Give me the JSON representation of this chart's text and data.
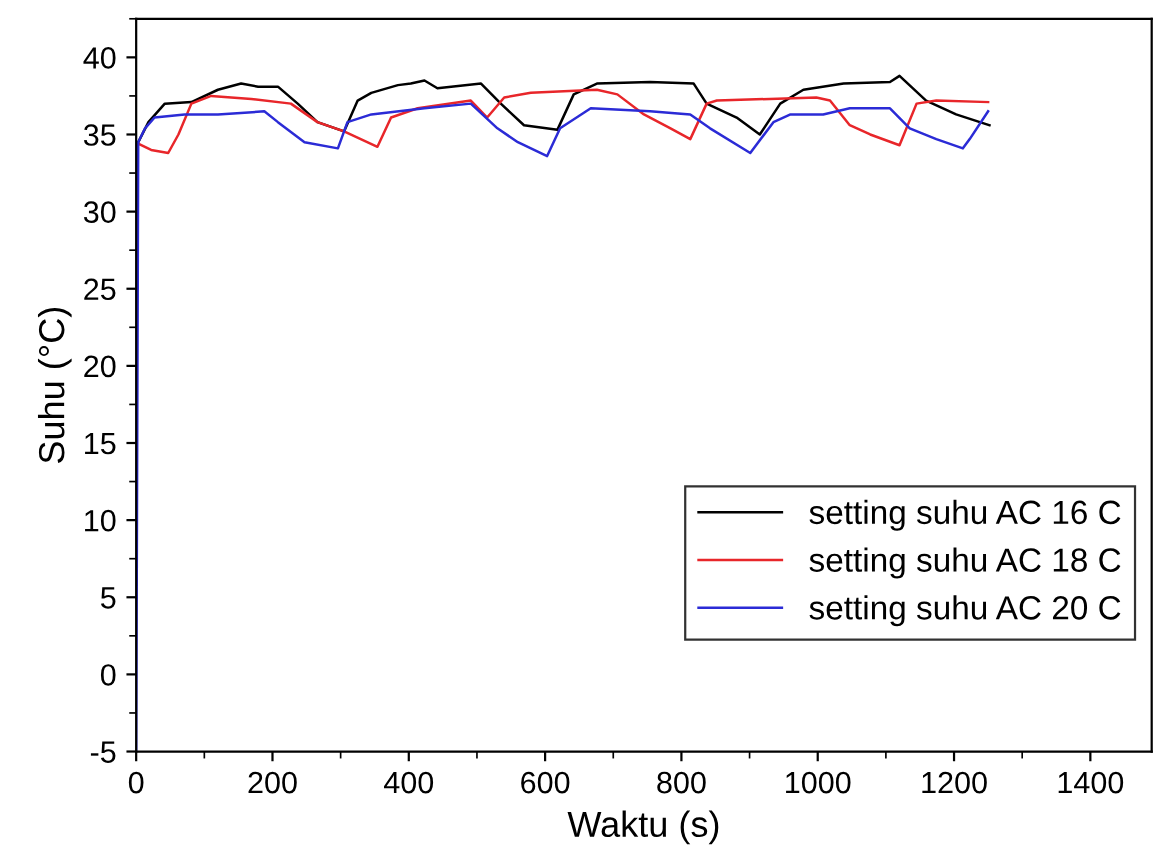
{
  "chart_data": {
    "type": "line",
    "xlabel": "Waktu (s)",
    "ylabel": "Suhu (°C)",
    "xlim": [
      0,
      1490
    ],
    "ylim": [
      -5,
      42.5
    ],
    "xticks": [
      0,
      200,
      400,
      600,
      800,
      1000,
      1200,
      1400
    ],
    "yticks": [
      -5,
      0,
      5,
      10,
      15,
      20,
      25,
      30,
      35,
      40
    ],
    "grid": false,
    "legend": "bottom right",
    "marker": "none",
    "line_style": "solid",
    "series": [
      {
        "name": "setting suhu AC 16 C",
        "color": "#000000",
        "x": [
          3,
          18,
          42,
          81,
          120,
          154,
          179,
          208,
          237,
          266,
          305,
          325,
          345,
          384,
          403,
          423,
          442,
          506,
          535,
          569,
          618,
          642,
          676,
          754,
          818,
          837,
          881,
          915,
          945,
          979,
          1038,
          1106,
          1120,
          1159,
          1203,
          1252
        ],
        "values": [
          34.5,
          35.8,
          37,
          37.1,
          37.9,
          38.3,
          38.1,
          38.1,
          37,
          35.8,
          35.2,
          37.2,
          37.7,
          38.2,
          38.3,
          38.5,
          38,
          38.3,
          37,
          35.6,
          35.3,
          37.6,
          38.3,
          38.4,
          38.3,
          37,
          36.1,
          35,
          37,
          37.9,
          38.3,
          38.4,
          38.8,
          37.2,
          36.3,
          35.6
        ]
      },
      {
        "name": "setting suhu AC 18 C",
        "color": "#e8262a",
        "x": [
          3,
          22,
          47,
          62,
          81,
          110,
          169,
          227,
          266,
          305,
          354,
          374,
          413,
          491,
          515,
          540,
          579,
          676,
          706,
          745,
          784,
          813,
          837,
          852,
          998,
          1018,
          1047,
          1077,
          1120,
          1145,
          1174,
          1250
        ],
        "values": [
          34.4,
          34,
          33.8,
          35,
          37,
          37.5,
          37.3,
          37,
          35.8,
          35.2,
          34.2,
          36.1,
          36.7,
          37.2,
          36.1,
          37.4,
          37.7,
          37.9,
          37.6,
          36.3,
          35.4,
          34.7,
          37,
          37.2,
          37.4,
          37.2,
          35.6,
          35,
          34.3,
          37,
          37.2,
          37.1
        ]
      },
      {
        "name": "setting suhu AC 20 C",
        "color": "#2b2bd6",
        "x": [
          0,
          3,
          13,
          27,
          71,
          120,
          188,
          208,
          247,
          296,
          310,
          345,
          423,
          491,
          530,
          560,
          603,
          622,
          667,
          754,
          813,
          842,
          901,
          935,
          960,
          1008,
          1047,
          1106,
          1135,
          1174,
          1213,
          1223,
          1250
        ],
        "values": [
          -5,
          34.5,
          35.4,
          36.1,
          36.3,
          36.3,
          36.5,
          35.8,
          34.5,
          34.1,
          35.8,
          36.3,
          36.7,
          37,
          35.4,
          34.5,
          33.6,
          35.4,
          36.7,
          36.5,
          36.3,
          35.4,
          33.8,
          35.8,
          36.3,
          36.3,
          36.7,
          36.7,
          35.4,
          34.7,
          34.1,
          34.7,
          36.5
        ]
      }
    ]
  }
}
